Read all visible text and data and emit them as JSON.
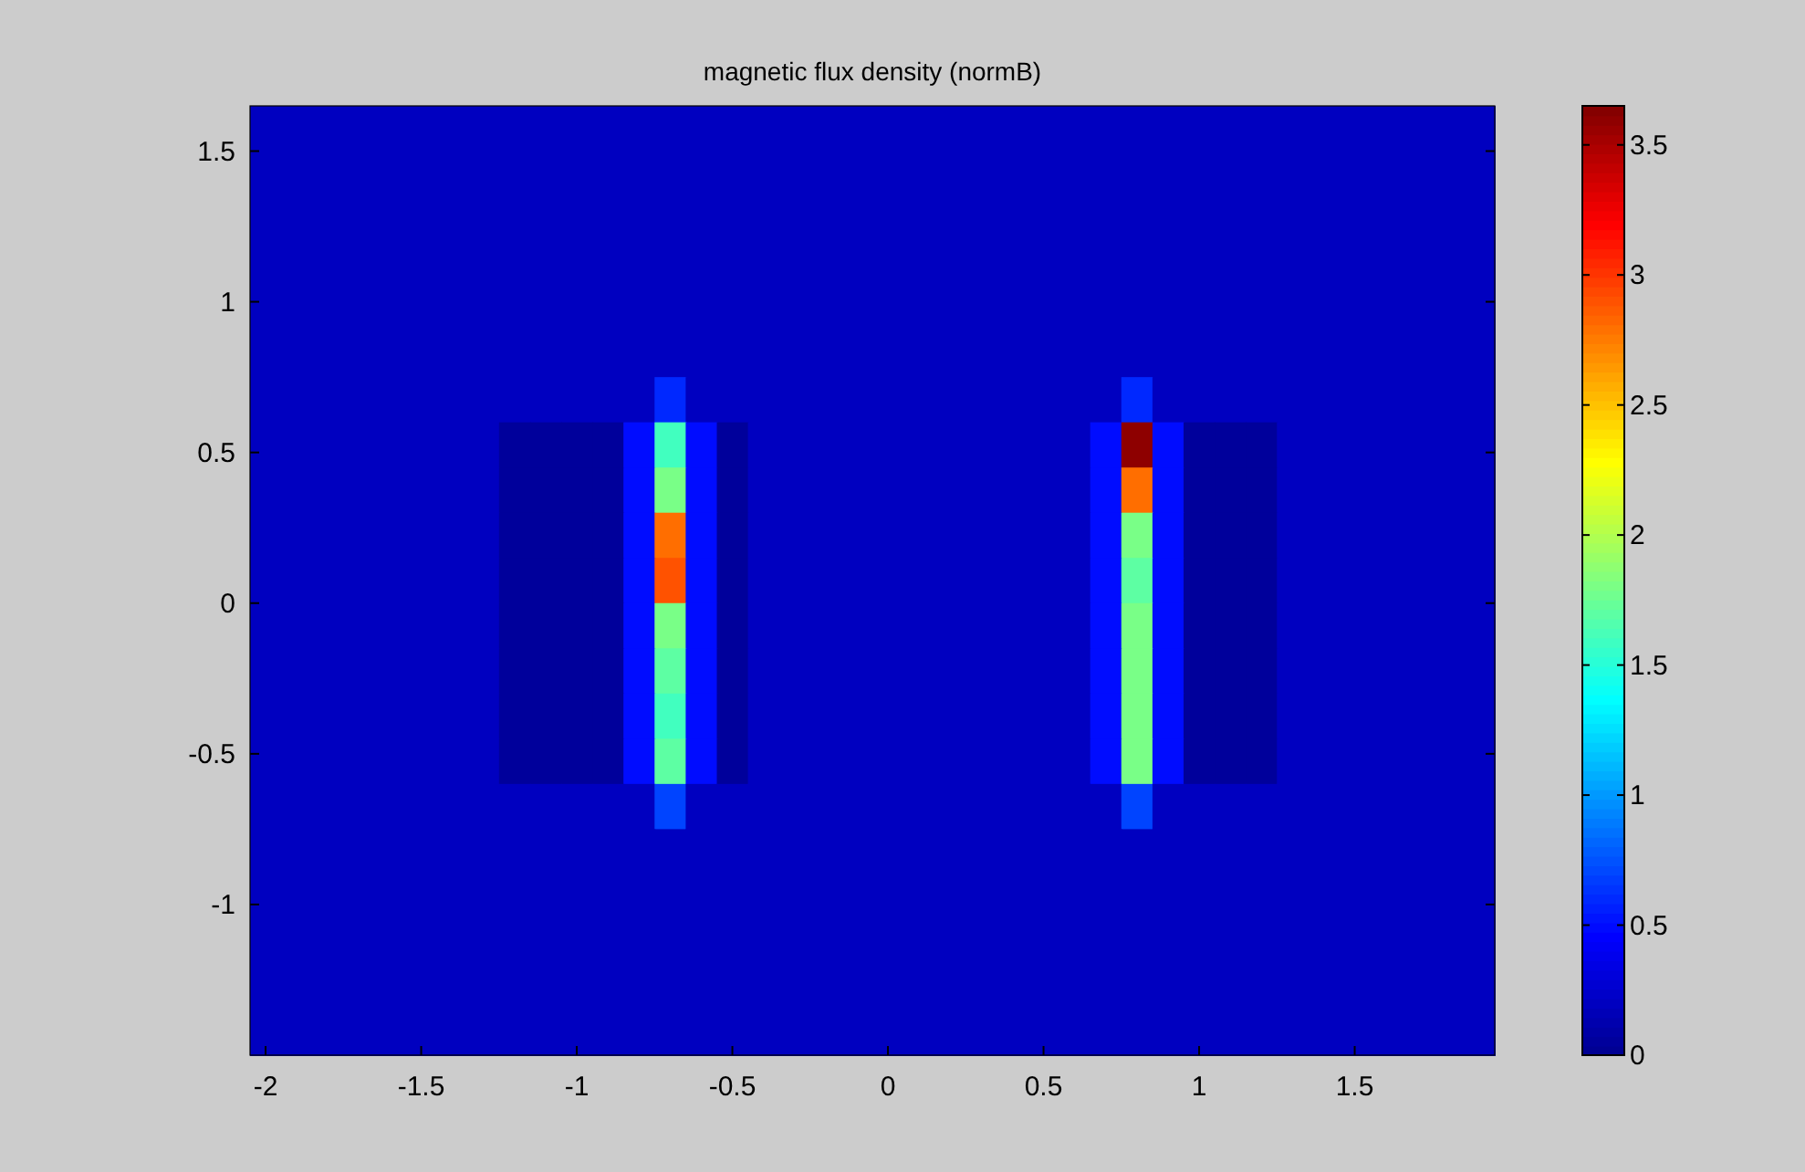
{
  "chart_data": {
    "type": "heatmap",
    "title": "magnetic flux density (normB)",
    "xlim": [
      -2.05,
      1.95
    ],
    "ylim": [
      -1.5,
      1.65
    ],
    "xticks": [
      -2,
      -1.5,
      -1,
      -0.5,
      0,
      0.5,
      1,
      1.5
    ],
    "yticks": [
      -1,
      -0.5,
      0,
      0.5,
      1,
      1.5
    ],
    "clim": [
      0,
      3.65
    ],
    "cticks": [
      0,
      0.5,
      1,
      1.5,
      2,
      2.5,
      3,
      3.5
    ],
    "cells": [
      [
        0.2,
        0.2,
        0.2,
        0.2,
        0.2,
        0.2,
        0.2,
        0.2,
        0.2,
        0.2,
        0.2,
        0.2,
        0.2,
        0.2,
        0.2,
        0.2,
        0.2,
        0.2,
        0.2,
        0.2,
        0.2,
        0.2,
        0.2,
        0.2,
        0.2,
        0.2,
        0.2,
        0.2,
        0.2,
        0.2,
        0.2,
        0.2,
        0.2,
        0.2,
        0.2,
        0.2,
        0.2,
        0.2,
        0.2,
        0.2
      ],
      [
        0.2,
        0.2,
        0.2,
        0.2,
        0.2,
        0.2,
        0.2,
        0.2,
        0.2,
        0.2,
        0.2,
        0.2,
        0.2,
        0.2,
        0.2,
        0.2,
        0.2,
        0.2,
        0.2,
        0.2,
        0.2,
        0.2,
        0.2,
        0.2,
        0.2,
        0.2,
        0.2,
        0.2,
        0.2,
        0.2,
        0.2,
        0.2,
        0.2,
        0.2,
        0.2,
        0.2,
        0.2,
        0.2,
        0.2,
        0.2
      ],
      [
        0.2,
        0.2,
        0.2,
        0.2,
        0.2,
        0.2,
        0.2,
        0.2,
        0.2,
        0.2,
        0.2,
        0.2,
        0.2,
        0.2,
        0.2,
        0.2,
        0.2,
        0.2,
        0.2,
        0.2,
        0.2,
        0.2,
        0.2,
        0.2,
        0.2,
        0.2,
        0.2,
        0.2,
        0.2,
        0.2,
        0.2,
        0.2,
        0.2,
        0.2,
        0.2,
        0.2,
        0.2,
        0.2,
        0.2,
        0.2
      ],
      [
        0.2,
        0.2,
        0.2,
        0.2,
        0.2,
        0.2,
        0.2,
        0.2,
        0.2,
        0.2,
        0.2,
        0.2,
        0.2,
        0.2,
        0.2,
        0.2,
        0.2,
        0.2,
        0.2,
        0.2,
        0.2,
        0.2,
        0.2,
        0.2,
        0.2,
        0.2,
        0.2,
        0.2,
        0.2,
        0.2,
        0.2,
        0.2,
        0.2,
        0.2,
        0.2,
        0.2,
        0.2,
        0.2,
        0.2,
        0.2
      ],
      [
        0.2,
        0.2,
        0.2,
        0.2,
        0.2,
        0.2,
        0.2,
        0.2,
        0.2,
        0.2,
        0.2,
        0.2,
        0.2,
        0.2,
        0.2,
        0.2,
        0.2,
        0.2,
        0.2,
        0.2,
        0.2,
        0.2,
        0.2,
        0.2,
        0.2,
        0.2,
        0.2,
        0.2,
        0.2,
        0.2,
        0.2,
        0.2,
        0.2,
        0.2,
        0.2,
        0.2,
        0.2,
        0.2,
        0.2,
        0.2
      ],
      [
        0.2,
        0.2,
        0.2,
        0.2,
        0.2,
        0.2,
        0.2,
        0.2,
        0.2,
        0.2,
        0.2,
        0.2,
        0.2,
        0.2,
        0.2,
        0.2,
        0.2,
        0.2,
        0.2,
        0.2,
        0.2,
        0.2,
        0.2,
        0.2,
        0.2,
        0.2,
        0.2,
        0.2,
        0.2,
        0.2,
        0.2,
        0.2,
        0.2,
        0.2,
        0.2,
        0.2,
        0.2,
        0.2,
        0.2,
        0.2
      ],
      [
        0.2,
        0.2,
        0.2,
        0.2,
        0.2,
        0.2,
        0.2,
        0.2,
        0.2,
        0.2,
        0.2,
        0.2,
        0.2,
        0.6,
        0.2,
        0.2,
        0.2,
        0.2,
        0.2,
        0.2,
        0.2,
        0.2,
        0.2,
        0.2,
        0.2,
        0.2,
        0.2,
        0.2,
        0.6,
        0.2,
        0.2,
        0.2,
        0.2,
        0.2,
        0.2,
        0.2,
        0.2,
        0.2,
        0.2,
        0.2
      ],
      [
        0.2,
        0.2,
        0.2,
        0.2,
        0.2,
        0.2,
        0.2,
        0.2,
        0.05,
        0.05,
        0.05,
        0.05,
        0.5,
        1.6,
        0.5,
        0.05,
        0.2,
        0.2,
        0.2,
        0.2,
        0.2,
        0.2,
        0.2,
        0.2,
        0.2,
        0.2,
        0.2,
        0.5,
        3.6,
        0.5,
        0.05,
        0.05,
        0.05,
        0.2,
        0.2,
        0.2,
        0.2,
        0.2,
        0.2,
        0.2
      ],
      [
        0.2,
        0.2,
        0.2,
        0.2,
        0.2,
        0.2,
        0.2,
        0.2,
        0.05,
        0.05,
        0.05,
        0.05,
        0.5,
        1.8,
        0.5,
        0.05,
        0.2,
        0.2,
        0.2,
        0.2,
        0.2,
        0.2,
        0.2,
        0.2,
        0.2,
        0.2,
        0.2,
        0.5,
        2.8,
        0.5,
        0.05,
        0.05,
        0.05,
        0.2,
        0.2,
        0.2,
        0.2,
        0.2,
        0.2,
        0.2
      ],
      [
        0.2,
        0.2,
        0.2,
        0.2,
        0.2,
        0.2,
        0.2,
        0.2,
        0.05,
        0.05,
        0.05,
        0.05,
        0.5,
        2.8,
        0.5,
        0.05,
        0.2,
        0.2,
        0.2,
        0.2,
        0.2,
        0.2,
        0.2,
        0.2,
        0.2,
        0.2,
        0.2,
        0.5,
        1.8,
        0.5,
        0.05,
        0.05,
        0.05,
        0.2,
        0.2,
        0.2,
        0.2,
        0.2,
        0.2,
        0.2
      ],
      [
        0.2,
        0.2,
        0.2,
        0.2,
        0.2,
        0.2,
        0.2,
        0.2,
        0.05,
        0.05,
        0.05,
        0.05,
        0.5,
        2.9,
        0.5,
        0.05,
        0.2,
        0.2,
        0.2,
        0.2,
        0.2,
        0.2,
        0.2,
        0.2,
        0.2,
        0.2,
        0.2,
        0.5,
        1.7,
        0.5,
        0.05,
        0.05,
        0.05,
        0.2,
        0.2,
        0.2,
        0.2,
        0.2,
        0.2,
        0.2
      ],
      [
        0.2,
        0.2,
        0.2,
        0.2,
        0.2,
        0.2,
        0.2,
        0.2,
        0.05,
        0.05,
        0.05,
        0.05,
        0.5,
        1.8,
        0.5,
        0.05,
        0.2,
        0.2,
        0.2,
        0.2,
        0.2,
        0.2,
        0.2,
        0.2,
        0.2,
        0.2,
        0.2,
        0.5,
        1.8,
        0.5,
        0.05,
        0.05,
        0.05,
        0.2,
        0.2,
        0.2,
        0.2,
        0.2,
        0.2,
        0.2
      ],
      [
        0.2,
        0.2,
        0.2,
        0.2,
        0.2,
        0.2,
        0.2,
        0.2,
        0.05,
        0.05,
        0.05,
        0.05,
        0.5,
        1.7,
        0.5,
        0.05,
        0.2,
        0.2,
        0.2,
        0.2,
        0.2,
        0.2,
        0.2,
        0.2,
        0.2,
        0.2,
        0.2,
        0.5,
        1.8,
        0.5,
        0.05,
        0.05,
        0.05,
        0.2,
        0.2,
        0.2,
        0.2,
        0.2,
        0.2,
        0.2
      ],
      [
        0.2,
        0.2,
        0.2,
        0.2,
        0.2,
        0.2,
        0.2,
        0.2,
        0.05,
        0.05,
        0.05,
        0.05,
        0.5,
        1.6,
        0.5,
        0.05,
        0.2,
        0.2,
        0.2,
        0.2,
        0.2,
        0.2,
        0.2,
        0.2,
        0.2,
        0.2,
        0.2,
        0.5,
        1.8,
        0.5,
        0.05,
        0.05,
        0.05,
        0.2,
        0.2,
        0.2,
        0.2,
        0.2,
        0.2,
        0.2
      ],
      [
        0.2,
        0.2,
        0.2,
        0.2,
        0.2,
        0.2,
        0.2,
        0.2,
        0.05,
        0.05,
        0.05,
        0.05,
        0.5,
        1.7,
        0.5,
        0.05,
        0.2,
        0.2,
        0.2,
        0.2,
        0.2,
        0.2,
        0.2,
        0.2,
        0.2,
        0.2,
        0.2,
        0.5,
        1.8,
        0.5,
        0.05,
        0.05,
        0.05,
        0.2,
        0.2,
        0.2,
        0.2,
        0.2,
        0.2,
        0.2
      ],
      [
        0.2,
        0.2,
        0.2,
        0.2,
        0.2,
        0.2,
        0.2,
        0.2,
        0.2,
        0.2,
        0.2,
        0.2,
        0.2,
        0.7,
        0.2,
        0.2,
        0.2,
        0.2,
        0.2,
        0.2,
        0.2,
        0.2,
        0.2,
        0.2,
        0.2,
        0.2,
        0.2,
        0.2,
        0.7,
        0.2,
        0.2,
        0.2,
        0.2,
        0.2,
        0.2,
        0.2,
        0.2,
        0.2,
        0.2,
        0.2
      ],
      [
        0.2,
        0.2,
        0.2,
        0.2,
        0.2,
        0.2,
        0.2,
        0.2,
        0.2,
        0.2,
        0.2,
        0.2,
        0.2,
        0.2,
        0.2,
        0.2,
        0.2,
        0.2,
        0.2,
        0.2,
        0.2,
        0.2,
        0.2,
        0.2,
        0.2,
        0.2,
        0.2,
        0.2,
        0.2,
        0.2,
        0.2,
        0.2,
        0.2,
        0.2,
        0.2,
        0.2,
        0.2,
        0.2,
        0.2,
        0.2
      ],
      [
        0.2,
        0.2,
        0.2,
        0.2,
        0.2,
        0.2,
        0.2,
        0.2,
        0.2,
        0.2,
        0.2,
        0.2,
        0.2,
        0.2,
        0.2,
        0.2,
        0.2,
        0.2,
        0.2,
        0.2,
        0.2,
        0.2,
        0.2,
        0.2,
        0.2,
        0.2,
        0.2,
        0.2,
        0.2,
        0.2,
        0.2,
        0.2,
        0.2,
        0.2,
        0.2,
        0.2,
        0.2,
        0.2,
        0.2,
        0.2
      ],
      [
        0.2,
        0.2,
        0.2,
        0.2,
        0.2,
        0.2,
        0.2,
        0.2,
        0.2,
        0.2,
        0.2,
        0.2,
        0.2,
        0.2,
        0.2,
        0.2,
        0.2,
        0.2,
        0.2,
        0.2,
        0.2,
        0.2,
        0.2,
        0.2,
        0.2,
        0.2,
        0.2,
        0.2,
        0.2,
        0.2,
        0.2,
        0.2,
        0.2,
        0.2,
        0.2,
        0.2,
        0.2,
        0.2,
        0.2,
        0.2
      ],
      [
        0.2,
        0.2,
        0.2,
        0.2,
        0.2,
        0.2,
        0.2,
        0.2,
        0.2,
        0.2,
        0.2,
        0.2,
        0.2,
        0.2,
        0.2,
        0.2,
        0.2,
        0.2,
        0.2,
        0.2,
        0.2,
        0.2,
        0.2,
        0.2,
        0.2,
        0.2,
        0.2,
        0.2,
        0.2,
        0.2,
        0.2,
        0.2,
        0.2,
        0.2,
        0.2,
        0.2,
        0.2,
        0.2,
        0.2,
        0.2
      ],
      [
        0.2,
        0.2,
        0.2,
        0.2,
        0.2,
        0.2,
        0.2,
        0.2,
        0.2,
        0.2,
        0.2,
        0.2,
        0.2,
        0.2,
        0.2,
        0.2,
        0.2,
        0.2,
        0.2,
        0.2,
        0.2,
        0.2,
        0.2,
        0.2,
        0.2,
        0.2,
        0.2,
        0.2,
        0.2,
        0.2,
        0.2,
        0.2,
        0.2,
        0.2,
        0.2,
        0.2,
        0.2,
        0.2,
        0.2,
        0.2
      ]
    ]
  }
}
